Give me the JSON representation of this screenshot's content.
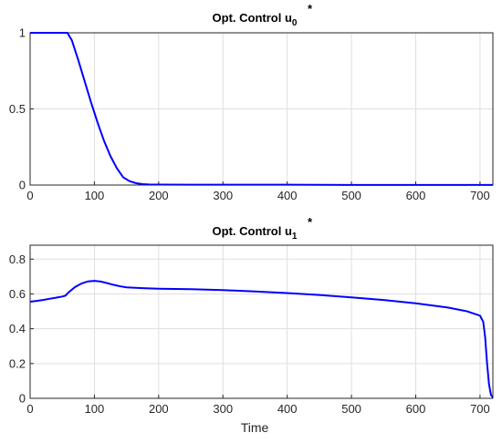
{
  "chart_data": [
    {
      "type": "line",
      "title_main": "Opt. Control u",
      "title_sup": "*",
      "title_sub": "0",
      "xlabel": "",
      "ylabel": "",
      "xlim": [
        0,
        720
      ],
      "ylim": [
        0,
        1
      ],
      "grid": true,
      "x_ticks": [
        0,
        100,
        200,
        300,
        400,
        500,
        600,
        700
      ],
      "y_ticks": [
        0,
        0.5,
        1
      ],
      "y_tick_labels": [
        "0",
        "0.5",
        "1"
      ],
      "color": "#0000ff",
      "series": [
        {
          "x": [
            0,
            30,
            58,
            65,
            75,
            85,
            95,
            105,
            115,
            125,
            135,
            145,
            155,
            165,
            175,
            185,
            200,
            250,
            300,
            400,
            500,
            600,
            700,
            720
          ],
          "y": [
            1,
            1,
            1,
            0.95,
            0.82,
            0.68,
            0.54,
            0.41,
            0.29,
            0.19,
            0.11,
            0.05,
            0.025,
            0.012,
            0.006,
            0.004,
            0.003,
            0.002,
            0.002,
            0.002,
            0.001,
            0.001,
            0.001,
            0.001
          ]
        }
      ]
    },
    {
      "type": "line",
      "title_main": "Opt. Control u",
      "title_sup": "*",
      "title_sub": "1",
      "xlabel": "Time",
      "ylabel": "",
      "xlim": [
        0,
        720
      ],
      "ylim": [
        0,
        0.88
      ],
      "grid": true,
      "x_ticks": [
        0,
        100,
        200,
        300,
        400,
        500,
        600,
        700
      ],
      "y_ticks": [
        0,
        0.2,
        0.4,
        0.6,
        0.8
      ],
      "y_tick_labels": [
        "0",
        "0.2",
        "0.4",
        "0.6",
        "0.8"
      ],
      "color": "#0000ff",
      "series": [
        {
          "x": [
            0,
            10,
            20,
            30,
            40,
            50,
            55,
            60,
            70,
            80,
            90,
            100,
            110,
            120,
            130,
            140,
            150,
            175,
            200,
            250,
            300,
            350,
            400,
            450,
            500,
            550,
            600,
            650,
            680,
            700,
            705,
            708,
            711,
            714,
            717,
            720
          ],
          "y": [
            0.555,
            0.56,
            0.565,
            0.572,
            0.578,
            0.585,
            0.59,
            0.61,
            0.64,
            0.66,
            0.672,
            0.675,
            0.671,
            0.662,
            0.652,
            0.644,
            0.638,
            0.633,
            0.63,
            0.627,
            0.622,
            0.614,
            0.605,
            0.594,
            0.58,
            0.565,
            0.546,
            0.522,
            0.5,
            0.475,
            0.44,
            0.35,
            0.2,
            0.08,
            0.02,
            0.005
          ]
        }
      ]
    }
  ]
}
